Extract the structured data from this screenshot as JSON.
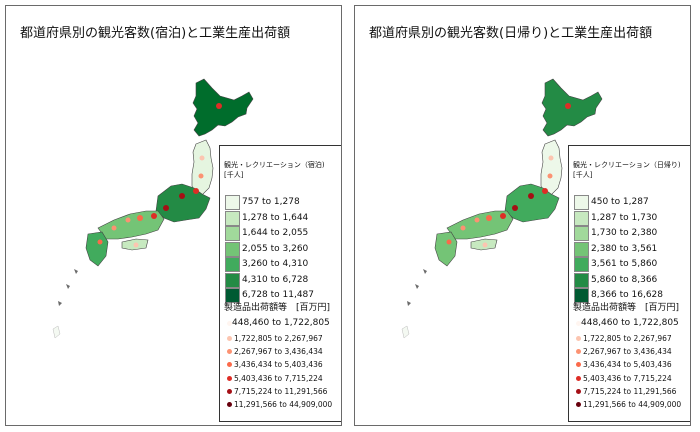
{
  "panels": [
    {
      "title": "都道府県別の観光客数(宿泊)と工業生産出荷額",
      "choropleth_legend": {
        "title": "観光・レクリエーション（宿泊)",
        "unit": "[千人]",
        "classes": [
          {
            "label": "757 to 1,278",
            "color": "#edf8e9"
          },
          {
            "label": "1,278 to 1,644",
            "color": "#c7e9c0"
          },
          {
            "label": "1,644 to 2,055",
            "color": "#a1d99b"
          },
          {
            "label": "2,055 to 3,260",
            "color": "#74c476"
          },
          {
            "label": "3,260 to 4,310",
            "color": "#41ab5d"
          },
          {
            "label": "4,310 to 6,728",
            "color": "#238b45"
          },
          {
            "label": "6,728 to 11,487",
            "color": "#005a32"
          }
        ]
      },
      "bubble_legend": {
        "title": "製造品出荷額等　[百万円]",
        "classes": [
          {
            "label": "448,460 to 1,722,805",
            "color": "#fff5f0"
          },
          {
            "label": "1,722,805 to 2,267,967",
            "color": "#fcc5b0"
          },
          {
            "label": "2,267,967 to 3,436,434",
            "color": "#fc9272"
          },
          {
            "label": "3,436,434 to 5,403,436",
            "color": "#fb6a4a"
          },
          {
            "label": "5,403,436 to 7,715,224",
            "color": "#de2d26"
          },
          {
            "label": "7,715,224 to 11,291,566",
            "color": "#a50f15"
          },
          {
            "label": "11,291,566 to 44,909,000",
            "color": "#67000d"
          }
        ]
      }
    },
    {
      "title": "都道府県別の観光客数(日帰り)と工業生産出荷額",
      "choropleth_legend": {
        "title": "観光・レクリエーション（日帰り)",
        "unit": "[千人]",
        "classes": [
          {
            "label": "450 to 1,287",
            "color": "#edf8e9"
          },
          {
            "label": "1,287 to 1,730",
            "color": "#c7e9c0"
          },
          {
            "label": "1,730 to 2,380",
            "color": "#a1d99b"
          },
          {
            "label": "2,380 to 3,561",
            "color": "#74c476"
          },
          {
            "label": "3,561 to 5,860",
            "color": "#41ab5d"
          },
          {
            "label": "5,860 to 8,366",
            "color": "#238b45"
          },
          {
            "label": "8,366 to 16,628",
            "color": "#005a32"
          }
        ]
      },
      "bubble_legend": {
        "title": "製造品出荷額等　[百万円]",
        "classes": [
          {
            "label": "448,460 to 1,722,805",
            "color": "#fff5f0"
          },
          {
            "label": "1,722,805 to 2,267,967",
            "color": "#fcc5b0"
          },
          {
            "label": "2,267,967 to 3,436,434",
            "color": "#fc9272"
          },
          {
            "label": "3,436,434 to 5,403,436",
            "color": "#fb6a4a"
          },
          {
            "label": "5,403,436 to 7,715,224",
            "color": "#de2d26"
          },
          {
            "label": "7,715,224 to 11,291,566",
            "color": "#a50f15"
          },
          {
            "label": "11,291,566 to 44,909,000",
            "color": "#67000d"
          }
        ]
      }
    }
  ],
  "colors": {
    "land_light": "#e5f5e0",
    "land_mid": "#74c476",
    "land_dark": "#006d2c",
    "border": "#555555",
    "islands": "#6b6b6b"
  }
}
